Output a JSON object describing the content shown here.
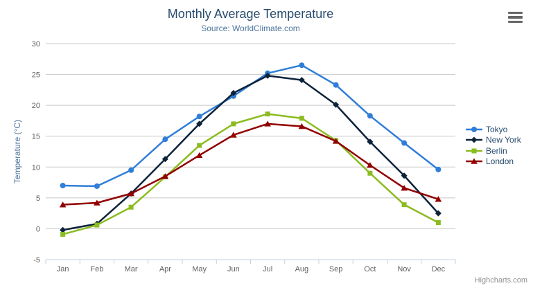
{
  "header": {
    "title": "Monthly Average Temperature",
    "subtitle": "Source: WorldClimate.com"
  },
  "export_menu": {
    "icon": "hamburger-icon"
  },
  "credits": {
    "text": "Highcharts.com"
  },
  "chart_data": {
    "type": "line",
    "title": "Monthly Average Temperature",
    "subtitle": "Source: WorldClimate.com",
    "categories": [
      "Jan",
      "Feb",
      "Mar",
      "Apr",
      "May",
      "Jun",
      "Jul",
      "Aug",
      "Sep",
      "Oct",
      "Nov",
      "Dec"
    ],
    "series": [
      {
        "name": "Tokyo",
        "color": "#2f7ed8",
        "marker": "circle",
        "values": [
          7.0,
          6.9,
          9.5,
          14.5,
          18.2,
          21.5,
          25.2,
          26.5,
          23.3,
          18.3,
          13.9,
          9.6
        ]
      },
      {
        "name": "New York",
        "color": "#0d233a",
        "marker": "diamond",
        "values": [
          -0.2,
          0.8,
          5.7,
          11.3,
          17.0,
          22.0,
          24.8,
          24.1,
          20.1,
          14.1,
          8.6,
          2.5
        ]
      },
      {
        "name": "Berlin",
        "color": "#8bbc21",
        "marker": "square",
        "values": [
          -0.9,
          0.6,
          3.5,
          8.4,
          13.5,
          17.0,
          18.6,
          17.9,
          14.3,
          9.0,
          3.9,
          1.0
        ]
      },
      {
        "name": "London",
        "color": "#910000",
        "marker": "triangle",
        "values": [
          3.9,
          4.2,
          5.7,
          8.5,
          11.9,
          15.2,
          17.0,
          16.6,
          14.2,
          10.3,
          6.6,
          4.8
        ]
      }
    ],
    "xlabel": "",
    "ylabel": "Temperature (°C)",
    "ylim": [
      -5,
      30
    ],
    "ytick_step": 5,
    "grid": true,
    "legend_position": "right",
    "colors": {
      "title": "#274b6d",
      "subtitle": "#4d759e",
      "axis_labels": "#606060",
      "grid_line": "#c8c8c8",
      "axis_line": "#c0d0e0",
      "legend_text": "#274b6d",
      "credits_text": "#909090"
    }
  }
}
